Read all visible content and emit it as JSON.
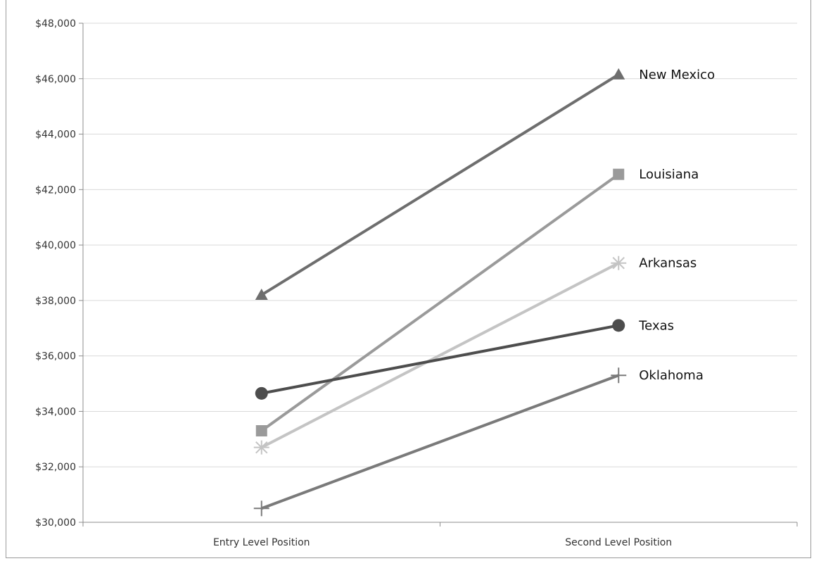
{
  "chart_data": {
    "type": "line",
    "title": "",
    "xlabel": "",
    "ylabel": "",
    "categories": [
      "Entry Level Position",
      "Second Level Position"
    ],
    "ylim": [
      30000,
      48000
    ],
    "yticks": [
      30000,
      32000,
      34000,
      36000,
      38000,
      40000,
      42000,
      44000,
      46000,
      48000
    ],
    "ytick_labels": [
      "$30,000",
      "$32,000",
      "$34,000",
      "$36,000",
      "$38,000",
      "$40,000",
      "$42,000",
      "$44,000",
      "$46,000",
      "$48,000"
    ],
    "grid": true,
    "legend": "inline-right",
    "series": [
      {
        "name": "New Mexico",
        "values": [
          38200,
          46150
        ],
        "marker": "triangle",
        "color": "#6e6e6e"
      },
      {
        "name": "Louisiana",
        "values": [
          33300,
          42550
        ],
        "marker": "square",
        "color": "#9a9a9a"
      },
      {
        "name": "Arkansas",
        "values": [
          32700,
          39350
        ],
        "marker": "asterisk",
        "color": "#c4c4c4"
      },
      {
        "name": "Texas",
        "values": [
          34650,
          37100
        ],
        "marker": "circle",
        "color": "#4d4d4d"
      },
      {
        "name": "Oklahoma",
        "values": [
          30500,
          35300
        ],
        "marker": "plus",
        "color": "#7a7a7a"
      }
    ]
  }
}
